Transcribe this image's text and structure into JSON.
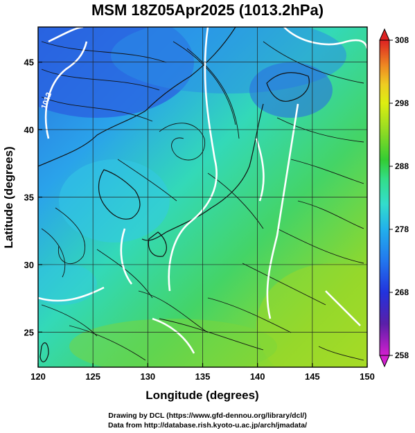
{
  "title": "MSM 18Z05Apr2025 (1013.2hPa)",
  "map": {
    "xlabel": "Longitude (degrees)",
    "ylabel": "Latitude  (degrees)",
    "xlim": [
      120,
      150
    ],
    "ylim": [
      22.4,
      47.6
    ],
    "x_ticks": [
      120,
      125,
      130,
      135,
      140,
      145,
      150
    ],
    "y_ticks": [
      25,
      30,
      35,
      40,
      45
    ],
    "contour_label": "1012"
  },
  "colorbar": {
    "min": 258,
    "max": 308,
    "labels": [
      308,
      298,
      288,
      278,
      268,
      258
    ],
    "colors": [
      "#cc22cc",
      "#5522aa",
      "#2233dd",
      "#2277ee",
      "#22aaee",
      "#33ddcc",
      "#33dd88",
      "#33cc33",
      "#99dd22",
      "#ddee11",
      "#eecc22",
      "#ee8822",
      "#ee4422",
      "#dd2222"
    ]
  },
  "credits": {
    "line1": "Drawing by DCL (https://www.gfd-dennou.org/library/dcl/)",
    "line2": "Data from http://database.rish.kyoto-u.ac.jp/arch/jmadata/"
  }
}
